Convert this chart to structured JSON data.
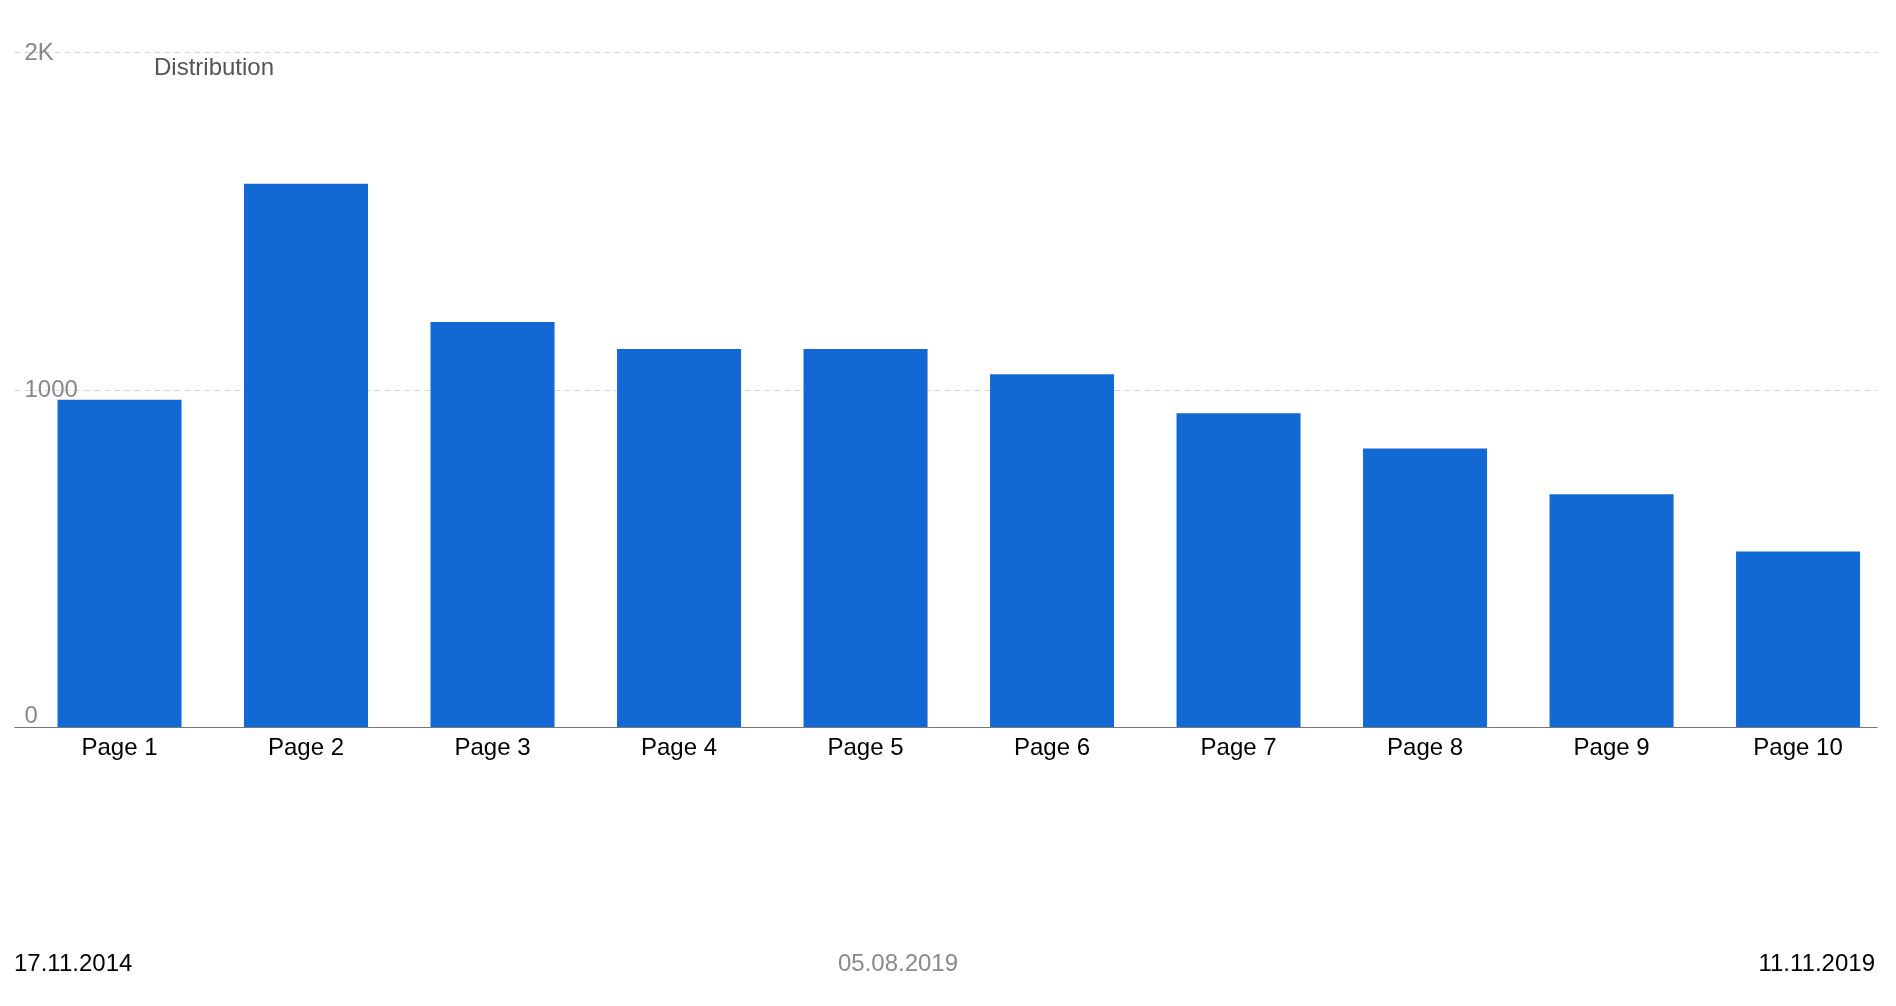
{
  "chart_data": {
    "type": "bar",
    "categories": [
      "Page 1",
      "Page 2",
      "Page 3",
      "Page 4",
      "Page 5",
      "Page 6",
      "Page 7",
      "Page 8",
      "Page 9",
      "Page 10"
    ],
    "values": [
      970,
      1610,
      1200,
      1120,
      1120,
      1045,
      930,
      825,
      690,
      520
    ],
    "color": "#1269d4",
    "ylim": [
      0,
      2000
    ],
    "yticks": [
      0,
      1000,
      {
        "value": 2000,
        "label": "2K"
      }
    ],
    "grid": "y",
    "annotations": [
      "Distribution",
      "17.11.2014",
      "05.08.2019",
      "11.11.2019"
    ]
  }
}
